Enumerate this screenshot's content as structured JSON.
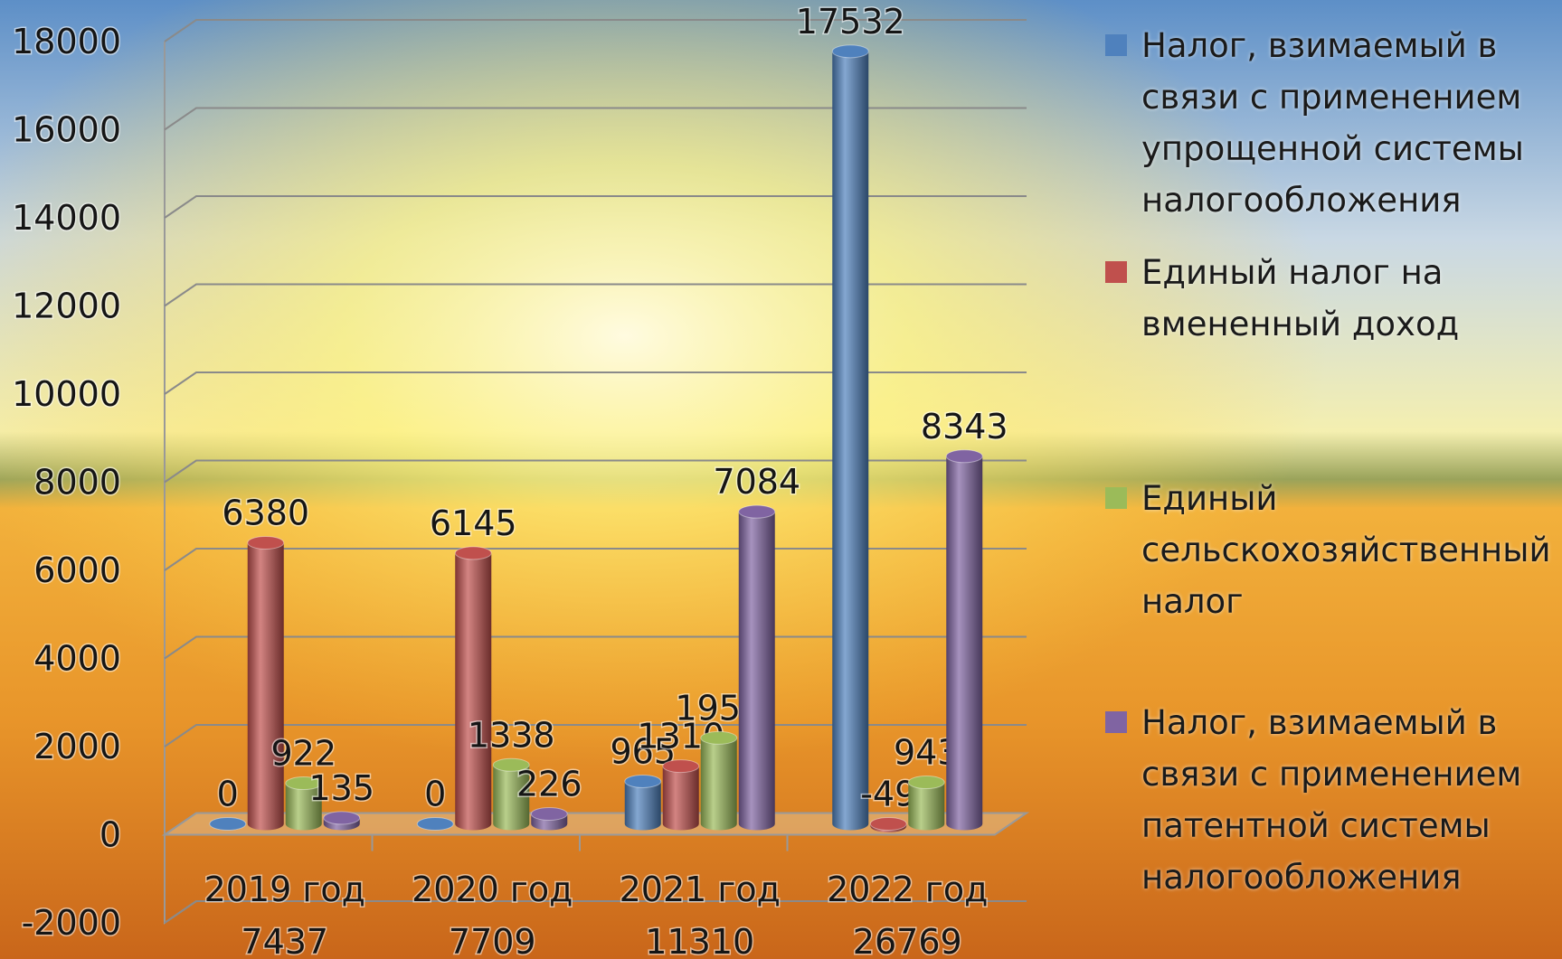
{
  "chart_data": {
    "type": "bar3d",
    "categories": [
      "2019 год",
      "2020 год",
      "2021 год",
      "2022 год"
    ],
    "category_totals": [
      "7437",
      "7709",
      "11310",
      "26769"
    ],
    "series": [
      {
        "name": "Налог, взимаемый в связи с применением упрощенной системы налогообложения",
        "color": "#4f81bd",
        "values": [
          0,
          0,
          965,
          17532
        ]
      },
      {
        "name": "Единый налог на вмененный доход",
        "color": "#c0504d",
        "values": [
          6380,
          6145,
          1310,
          -49
        ]
      },
      {
        "name": "Единый сельскохозяйственный налог",
        "color": "#9bbb59",
        "values": [
          922,
          1338,
          1951,
          943
        ]
      },
      {
        "name": "Налог, взимаемый в связи с применением патентной системы налогообложения",
        "color": "#8064a2",
        "values": [
          135,
          226,
          7084,
          8343
        ]
      }
    ],
    "ylim": [
      -2000,
      18000
    ],
    "yticks": [
      -2000,
      0,
      2000,
      4000,
      6000,
      8000,
      10000,
      12000,
      14000,
      16000,
      18000
    ],
    "grid": true
  }
}
